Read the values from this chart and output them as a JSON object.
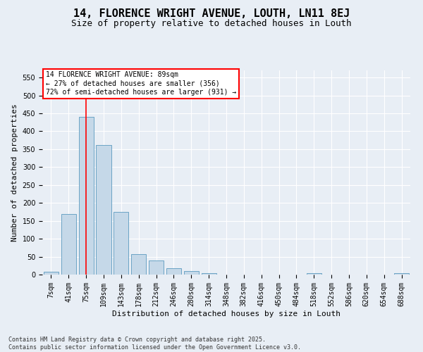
{
  "title_line1": "14, FLORENCE WRIGHT AVENUE, LOUTH, LN11 8EJ",
  "title_line2": "Size of property relative to detached houses in Louth",
  "xlabel": "Distribution of detached houses by size in Louth",
  "ylabel": "Number of detached properties",
  "categories": [
    "7sqm",
    "41sqm",
    "75sqm",
    "109sqm",
    "143sqm",
    "178sqm",
    "212sqm",
    "246sqm",
    "280sqm",
    "314sqm",
    "348sqm",
    "382sqm",
    "416sqm",
    "450sqm",
    "484sqm",
    "518sqm",
    "552sqm",
    "586sqm",
    "620sqm",
    "654sqm",
    "688sqm"
  ],
  "values": [
    8,
    170,
    440,
    362,
    175,
    57,
    40,
    18,
    10,
    4,
    0,
    0,
    0,
    0,
    0,
    3,
    0,
    0,
    0,
    0,
    4
  ],
  "bar_color": "#c5d8e8",
  "bar_edge_color": "#5a9abf",
  "vline_x": 2,
  "vline_color": "red",
  "annotation_box_text": "14 FLORENCE WRIGHT AVENUE: 89sqm\n← 27% of detached houses are smaller (356)\n72% of semi-detached houses are larger (931) →",
  "ylim": [
    0,
    570
  ],
  "yticks": [
    0,
    50,
    100,
    150,
    200,
    250,
    300,
    350,
    400,
    450,
    500,
    550
  ],
  "background_color": "#e8eef5",
  "plot_bg_color": "#e8eef5",
  "grid_color": "#ffffff",
  "footnote": "Contains HM Land Registry data © Crown copyright and database right 2025.\nContains public sector information licensed under the Open Government Licence v3.0.",
  "title_fontsize": 11,
  "subtitle_fontsize": 9,
  "axis_label_fontsize": 8,
  "tick_fontsize": 7,
  "annotation_fontsize": 7,
  "footnote_fontsize": 6
}
